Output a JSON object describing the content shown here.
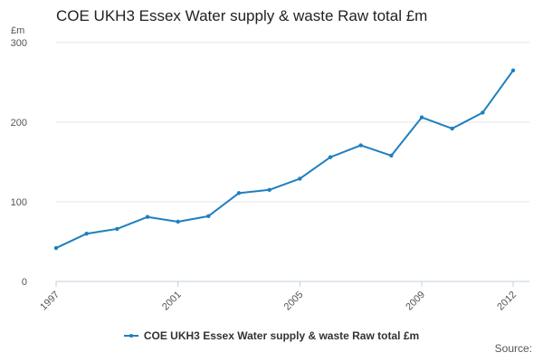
{
  "chart_data": {
    "type": "line",
    "title": "COE UKH3 Essex Water supply & waste Raw total £m",
    "ylabel": "£m",
    "xlabel": "",
    "x": [
      1997,
      1998,
      1999,
      2000,
      2001,
      2002,
      2003,
      2004,
      2005,
      2006,
      2007,
      2008,
      2009,
      2010,
      2011,
      2012
    ],
    "x_tick_labels": [
      "1997",
      "2001",
      "2005",
      "2009",
      "2012"
    ],
    "y_tick_labels": [
      "0",
      "100",
      "200",
      "300"
    ],
    "ylim": [
      0,
      300
    ],
    "xlim": [
      1997,
      2012
    ],
    "series": [
      {
        "name": "COE UKH3 Essex Water supply & waste Raw total £m",
        "color": "#1f7fbf",
        "values": [
          42,
          60,
          66,
          81,
          75,
          82,
          111,
          115,
          129,
          156,
          171,
          158,
          206,
          192,
          212,
          265
        ]
      }
    ],
    "grid": true,
    "legend": "bottom-center",
    "source": "Source:"
  }
}
